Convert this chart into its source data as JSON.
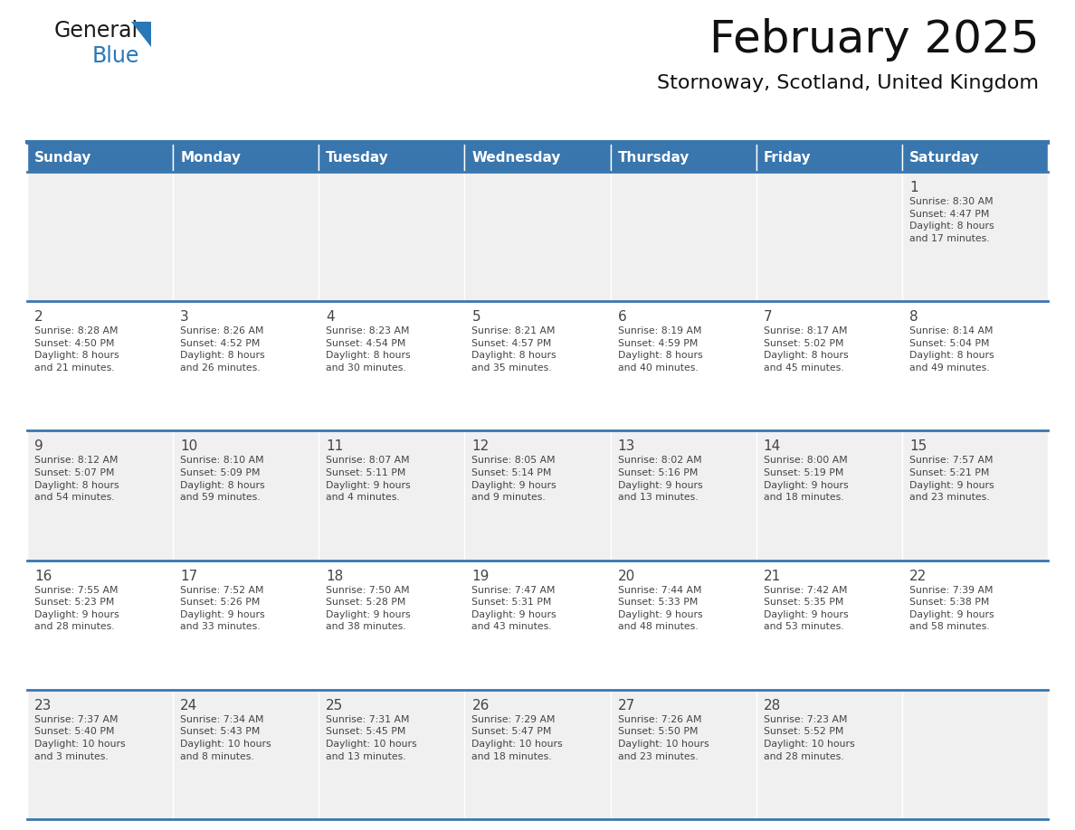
{
  "title": "February 2025",
  "subtitle": "Stornoway, Scotland, United Kingdom",
  "days_of_week": [
    "Sunday",
    "Monday",
    "Tuesday",
    "Wednesday",
    "Thursday",
    "Friday",
    "Saturday"
  ],
  "header_bg": "#3976ae",
  "header_text": "#ffffff",
  "row_bg_odd": "#f0f0f0",
  "row_bg_even": "#ffffff",
  "cell_border": "#3976ae",
  "day_number_color": "#444444",
  "info_text_color": "#444444",
  "title_color": "#111111",
  "subtitle_color": "#111111",
  "logo_black": "#1a1a1a",
  "logo_blue": "#2878b8",
  "triangle_blue": "#2878b8",
  "calendar_data": [
    [
      {
        "day": null,
        "info": ""
      },
      {
        "day": null,
        "info": ""
      },
      {
        "day": null,
        "info": ""
      },
      {
        "day": null,
        "info": ""
      },
      {
        "day": null,
        "info": ""
      },
      {
        "day": null,
        "info": ""
      },
      {
        "day": 1,
        "info": "Sunrise: 8:30 AM\nSunset: 4:47 PM\nDaylight: 8 hours\nand 17 minutes."
      }
    ],
    [
      {
        "day": 2,
        "info": "Sunrise: 8:28 AM\nSunset: 4:50 PM\nDaylight: 8 hours\nand 21 minutes."
      },
      {
        "day": 3,
        "info": "Sunrise: 8:26 AM\nSunset: 4:52 PM\nDaylight: 8 hours\nand 26 minutes."
      },
      {
        "day": 4,
        "info": "Sunrise: 8:23 AM\nSunset: 4:54 PM\nDaylight: 8 hours\nand 30 minutes."
      },
      {
        "day": 5,
        "info": "Sunrise: 8:21 AM\nSunset: 4:57 PM\nDaylight: 8 hours\nand 35 minutes."
      },
      {
        "day": 6,
        "info": "Sunrise: 8:19 AM\nSunset: 4:59 PM\nDaylight: 8 hours\nand 40 minutes."
      },
      {
        "day": 7,
        "info": "Sunrise: 8:17 AM\nSunset: 5:02 PM\nDaylight: 8 hours\nand 45 minutes."
      },
      {
        "day": 8,
        "info": "Sunrise: 8:14 AM\nSunset: 5:04 PM\nDaylight: 8 hours\nand 49 minutes."
      }
    ],
    [
      {
        "day": 9,
        "info": "Sunrise: 8:12 AM\nSunset: 5:07 PM\nDaylight: 8 hours\nand 54 minutes."
      },
      {
        "day": 10,
        "info": "Sunrise: 8:10 AM\nSunset: 5:09 PM\nDaylight: 8 hours\nand 59 minutes."
      },
      {
        "day": 11,
        "info": "Sunrise: 8:07 AM\nSunset: 5:11 PM\nDaylight: 9 hours\nand 4 minutes."
      },
      {
        "day": 12,
        "info": "Sunrise: 8:05 AM\nSunset: 5:14 PM\nDaylight: 9 hours\nand 9 minutes."
      },
      {
        "day": 13,
        "info": "Sunrise: 8:02 AM\nSunset: 5:16 PM\nDaylight: 9 hours\nand 13 minutes."
      },
      {
        "day": 14,
        "info": "Sunrise: 8:00 AM\nSunset: 5:19 PM\nDaylight: 9 hours\nand 18 minutes."
      },
      {
        "day": 15,
        "info": "Sunrise: 7:57 AM\nSunset: 5:21 PM\nDaylight: 9 hours\nand 23 minutes."
      }
    ],
    [
      {
        "day": 16,
        "info": "Sunrise: 7:55 AM\nSunset: 5:23 PM\nDaylight: 9 hours\nand 28 minutes."
      },
      {
        "day": 17,
        "info": "Sunrise: 7:52 AM\nSunset: 5:26 PM\nDaylight: 9 hours\nand 33 minutes."
      },
      {
        "day": 18,
        "info": "Sunrise: 7:50 AM\nSunset: 5:28 PM\nDaylight: 9 hours\nand 38 minutes."
      },
      {
        "day": 19,
        "info": "Sunrise: 7:47 AM\nSunset: 5:31 PM\nDaylight: 9 hours\nand 43 minutes."
      },
      {
        "day": 20,
        "info": "Sunrise: 7:44 AM\nSunset: 5:33 PM\nDaylight: 9 hours\nand 48 minutes."
      },
      {
        "day": 21,
        "info": "Sunrise: 7:42 AM\nSunset: 5:35 PM\nDaylight: 9 hours\nand 53 minutes."
      },
      {
        "day": 22,
        "info": "Sunrise: 7:39 AM\nSunset: 5:38 PM\nDaylight: 9 hours\nand 58 minutes."
      }
    ],
    [
      {
        "day": 23,
        "info": "Sunrise: 7:37 AM\nSunset: 5:40 PM\nDaylight: 10 hours\nand 3 minutes."
      },
      {
        "day": 24,
        "info": "Sunrise: 7:34 AM\nSunset: 5:43 PM\nDaylight: 10 hours\nand 8 minutes."
      },
      {
        "day": 25,
        "info": "Sunrise: 7:31 AM\nSunset: 5:45 PM\nDaylight: 10 hours\nand 13 minutes."
      },
      {
        "day": 26,
        "info": "Sunrise: 7:29 AM\nSunset: 5:47 PM\nDaylight: 10 hours\nand 18 minutes."
      },
      {
        "day": 27,
        "info": "Sunrise: 7:26 AM\nSunset: 5:50 PM\nDaylight: 10 hours\nand 23 minutes."
      },
      {
        "day": 28,
        "info": "Sunrise: 7:23 AM\nSunset: 5:52 PM\nDaylight: 10 hours\nand 28 minutes."
      },
      {
        "day": null,
        "info": ""
      }
    ]
  ]
}
